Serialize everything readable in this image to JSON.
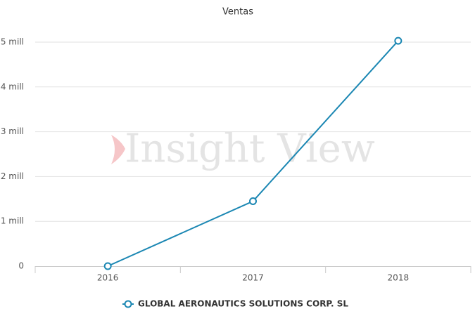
{
  "chart_data": {
    "type": "line",
    "title": "Ventas",
    "watermark": "Insight View",
    "categories": [
      "2016",
      "2017",
      "2018"
    ],
    "series": [
      {
        "name": "GLOBAL AERONAUTICS SOLUTIONS CORP. SL",
        "color": "#1b87b3",
        "values": [
          0,
          1.45,
          5.03
        ]
      }
    ],
    "ylim": [
      0,
      5
    ],
    "yticks": [
      0,
      {
        "value": 1,
        "label": "1 mill"
      },
      {
        "value": 2,
        "label": "2 mill"
      },
      {
        "value": 3,
        "label": "3 mill"
      },
      {
        "value": 4,
        "label": "4 mill"
      },
      {
        "value": 5,
        "label": "5 mill"
      }
    ],
    "grid": true,
    "legend": "bottom"
  }
}
